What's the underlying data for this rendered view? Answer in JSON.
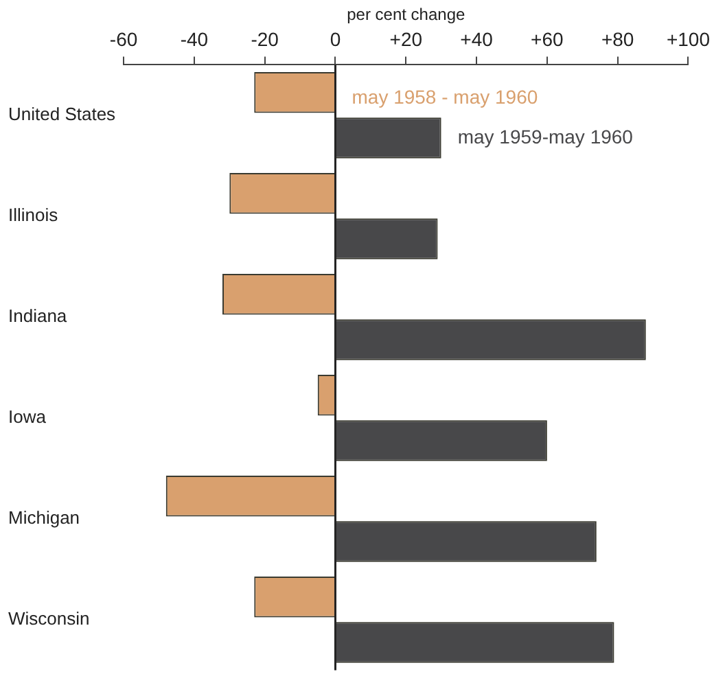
{
  "chart_data": {
    "type": "bar",
    "orientation": "horizontal",
    "xlabel": "per cent change",
    "categories": [
      "United States",
      "Illinois",
      "Indiana",
      "Iowa",
      "Michigan",
      "Wisconsin"
    ],
    "series": [
      {
        "name": "may 1958 - may 1960",
        "color": "#d9a06e",
        "values": [
          -23,
          -30,
          -32,
          -5,
          -48,
          -23
        ]
      },
      {
        "name": "may 1959-may 1960",
        "color": "#48484a",
        "values": [
          30,
          29,
          88,
          60,
          74,
          79
        ]
      }
    ],
    "xlim": [
      -60,
      100
    ],
    "xticks": [
      -60,
      -40,
      -20,
      0,
      {
        "value": 20,
        "label": "+20"
      },
      {
        "value": 40,
        "label": "+40"
      },
      {
        "value": 60,
        "label": "+60"
      },
      {
        "value": 80,
        "label": "+80"
      },
      {
        "value": 100,
        "label": "+100"
      }
    ],
    "ref_lines": [
      {
        "axis": "x",
        "value": 0,
        "color": "#222222"
      }
    ],
    "grid": false,
    "legend": false
  }
}
